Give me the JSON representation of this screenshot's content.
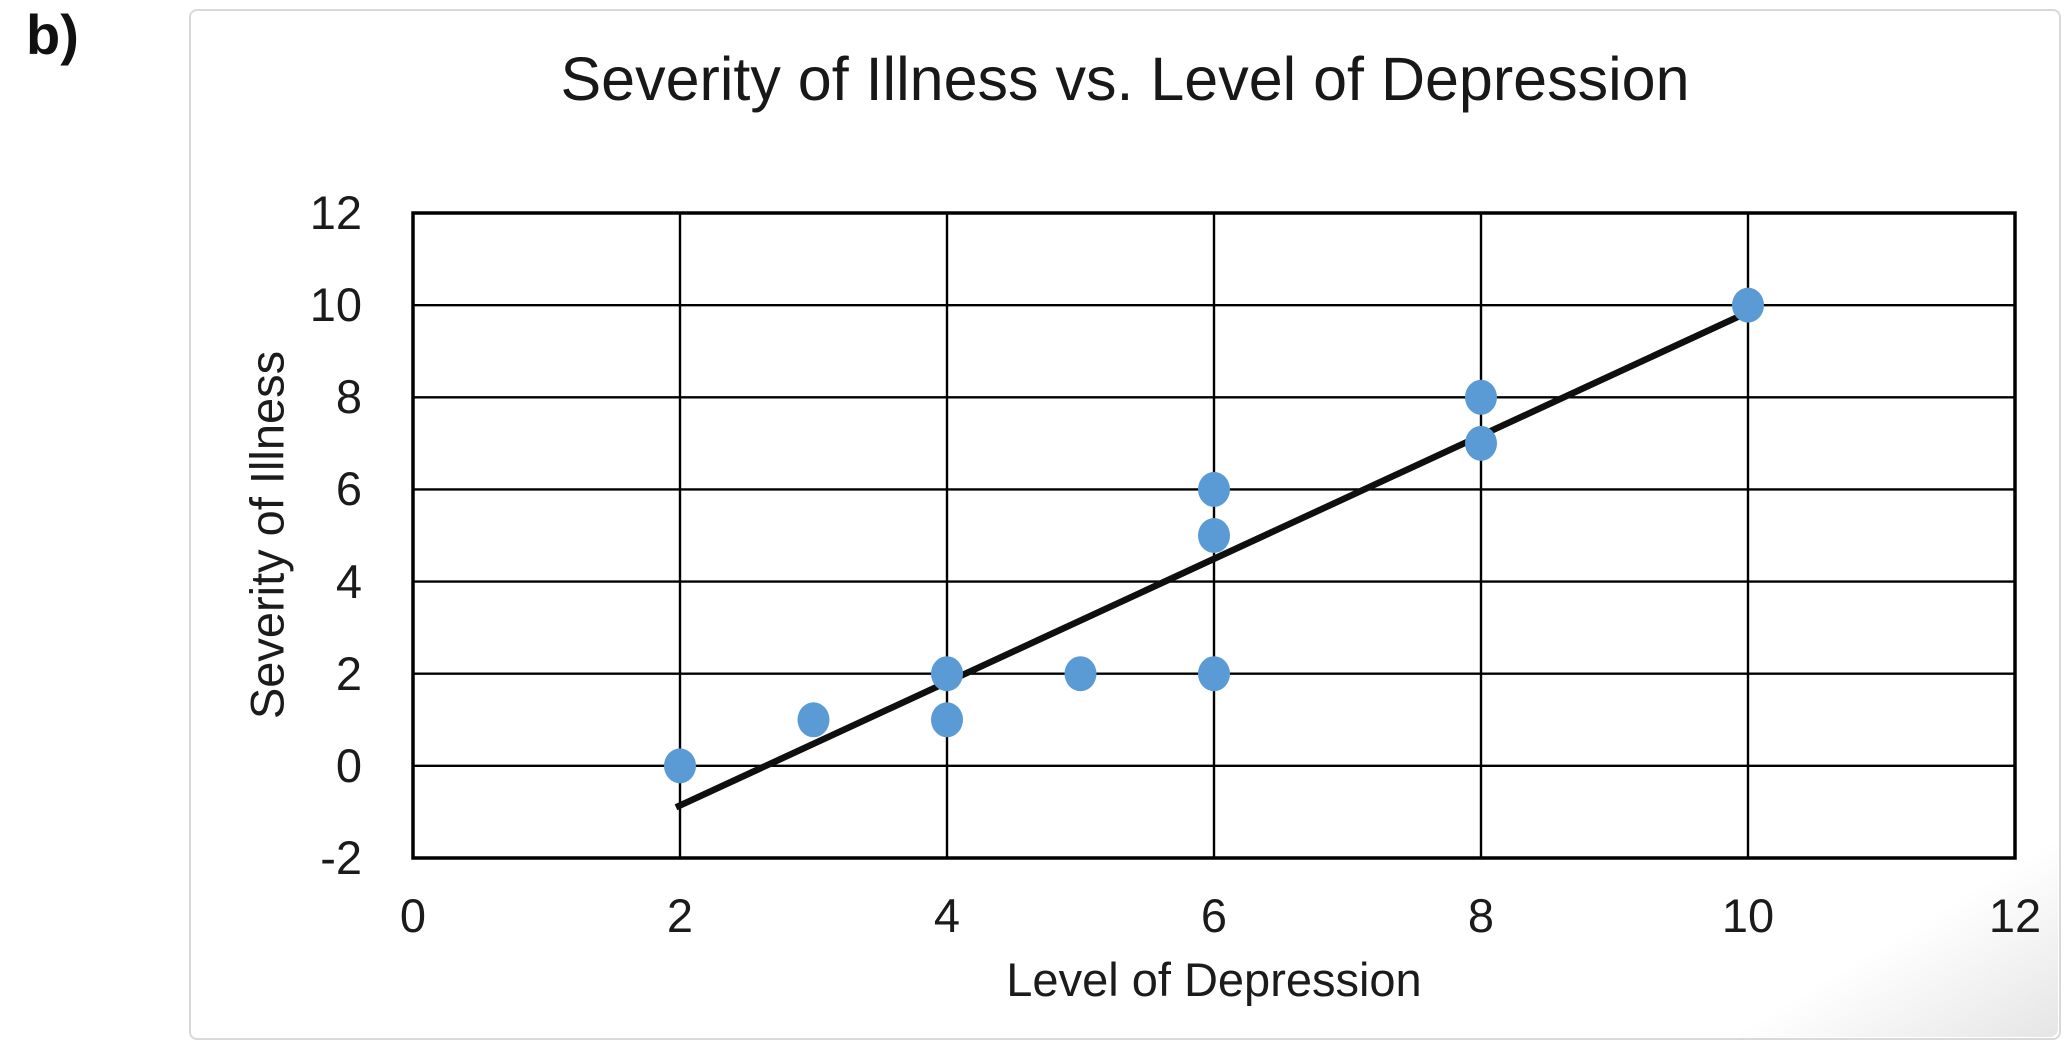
{
  "page": {
    "label_prefix": "b)"
  },
  "chart_data": {
    "type": "scatter",
    "title": "Severity of Illness vs. Level of Depression",
    "xlabel": "Level of Depression",
    "ylabel": "Severity of Illness",
    "xlim": [
      0,
      12
    ],
    "ylim": [
      -2,
      12
    ],
    "x_ticks": [
      0,
      2,
      4,
      6,
      8,
      10,
      12
    ],
    "y_ticks": [
      12,
      10,
      8,
      6,
      4,
      2,
      0,
      -2
    ],
    "grid": true,
    "legend": "none",
    "points": [
      {
        "x": 2,
        "y": 0
      },
      {
        "x": 3,
        "y": 1
      },
      {
        "x": 4,
        "y": 1
      },
      {
        "x": 4,
        "y": 2
      },
      {
        "x": 5,
        "y": 2
      },
      {
        "x": 6,
        "y": 2
      },
      {
        "x": 6,
        "y": 5
      },
      {
        "x": 6,
        "y": 6
      },
      {
        "x": 8,
        "y": 7
      },
      {
        "x": 8,
        "y": 8
      },
      {
        "x": 10,
        "y": 10
      }
    ],
    "trendline": {
      "x1": 1.97,
      "y1": -0.9,
      "x2": 9.95,
      "y2": 9.78
    },
    "colors": {
      "marker": "#5B9BD5",
      "trendline": "#0f0f0f",
      "grid": "#000000",
      "frame": "#000000",
      "text": "#1b1b1b",
      "card_border": "#d9d9d9",
      "background": "#ffffff"
    }
  }
}
